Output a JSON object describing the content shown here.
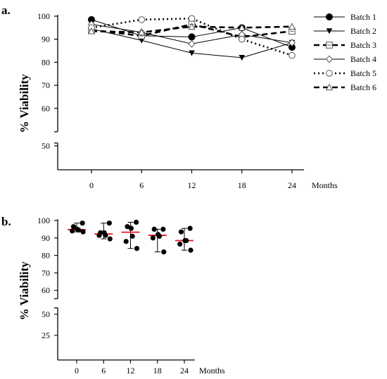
{
  "chart_data": [
    {
      "type": "line",
      "panel_label": "a.",
      "ylabel": "% Viability",
      "xlabel": "Months",
      "x": [
        0,
        6,
        12,
        18,
        24
      ],
      "y_ticks_upper": [
        60,
        70,
        80,
        90,
        100
      ],
      "y_ticks_lower": [
        50
      ],
      "y_break": true,
      "legend_position": "top-right",
      "series": [
        {
          "name": "Batch 1",
          "marker": "filled-circle",
          "line": "solid-thin",
          "values": [
            98.5,
            91.5,
            91.0,
            95.0,
            86.5
          ]
        },
        {
          "name": "Batch 2",
          "marker": "filled-triangle-down",
          "line": "solid-thin",
          "values": [
            94.5,
            89.5,
            84.0,
            82.0,
            88.5
          ]
        },
        {
          "name": "Batch 3",
          "marker": "open-square-dot",
          "line": "dashed-thick",
          "values": [
            94.0,
            91.5,
            96.5,
            91.0,
            93.5
          ]
        },
        {
          "name": "Batch 4",
          "marker": "open-diamond",
          "line": "solid-thin",
          "values": [
            96.5,
            93.0,
            88.0,
            92.0,
            88.5
          ]
        },
        {
          "name": "Batch 5",
          "marker": "open-circle",
          "line": "dotted-thick",
          "values": [
            95.0,
            98.5,
            99.0,
            90.0,
            83.0
          ]
        },
        {
          "name": "Batch 6",
          "marker": "open-triangle",
          "line": "dashed-thick",
          "values": [
            93.5,
            93.0,
            95.5,
            95.0,
            95.5
          ]
        }
      ]
    },
    {
      "type": "scatter",
      "panel_label": "b.",
      "ylabel": "% Viability",
      "xlabel": "Months",
      "x": [
        0,
        6,
        12,
        18,
        24
      ],
      "y_ticks_upper": [
        60,
        70,
        80,
        90,
        100
      ],
      "y_ticks_lower": [
        25,
        50
      ],
      "y_break": true,
      "median_color": "#e8141e",
      "groups": [
        {
          "x": 0,
          "points": [
            98.5,
            94.5,
            94.0,
            96.5,
            95.0,
            93.5
          ],
          "median": 94.8,
          "min": 93.5,
          "max": 98.5
        },
        {
          "x": 6,
          "points": [
            91.5,
            89.5,
            91.5,
            93.0,
            98.5,
            93.0
          ],
          "median": 92.3,
          "min": 89.5,
          "max": 98.5
        },
        {
          "x": 12,
          "points": [
            91.0,
            84.0,
            96.5,
            88.0,
            99.0,
            95.5
          ],
          "median": 93.3,
          "min": 84.0,
          "max": 99.0
        },
        {
          "x": 18,
          "points": [
            95.0,
            82.0,
            91.0,
            92.0,
            90.0,
            95.0
          ],
          "median": 91.5,
          "min": 82.0,
          "max": 95.0
        },
        {
          "x": 24,
          "points": [
            86.5,
            88.5,
            93.5,
            88.5,
            83.0,
            95.5
          ],
          "median": 88.5,
          "min": 83.0,
          "max": 95.5
        }
      ]
    }
  ]
}
